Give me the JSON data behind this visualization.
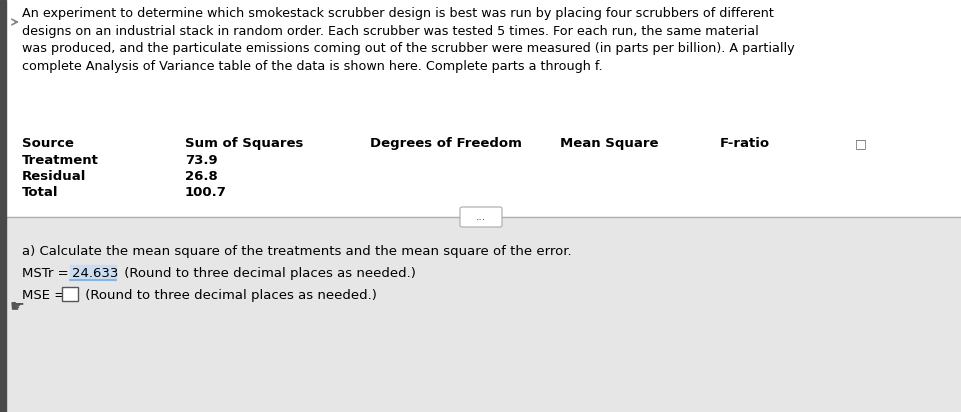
{
  "bg_color": "#f2f2f2",
  "top_bg": "#ffffff",
  "bottom_bg": "#e8e8e8",
  "paragraph_text": "An experiment to determine which smokestack scrubber design is best was run by placing four scrubbers of different\ndesigns on an industrial stack in random order. Each scrubber was tested 5 times. For each run, the same material\nwas produced, and the particulate emissions coming out of the scrubber were measured (in parts per billion). A partially\ncomplete Analysis of Variance table of the data is shown here. Complete parts a through f.",
  "table_headers": [
    "Source",
    "Sum of Squares",
    "Degrees of Freedom",
    "Mean Square",
    "F-ratio"
  ],
  "table_rows": [
    [
      "Treatment",
      "73.9"
    ],
    [
      "Residual",
      "26.8"
    ],
    [
      "Total",
      "100.7"
    ]
  ],
  "dots_button_text": "...",
  "part_a_text": "a) Calculate the mean square of the treatments and the mean square of the error.",
  "mstr_label": "MSTr = ",
  "mstr_value": "24.633",
  "mstr_note": " (Round to three decimal places as needed.)",
  "mse_label": "MSE = ",
  "mse_note": " (Round to three decimal places as needed.)",
  "font_size_para": 9.2,
  "font_size_table_header": 9.5,
  "font_size_table_data": 9.5,
  "font_size_answer": 9.5,
  "left_bar_color": "#4a4a4a",
  "left_bar_width": 6,
  "arrow_color": "#888888",
  "copy_icon": "□",
  "hand_icon": "☛"
}
